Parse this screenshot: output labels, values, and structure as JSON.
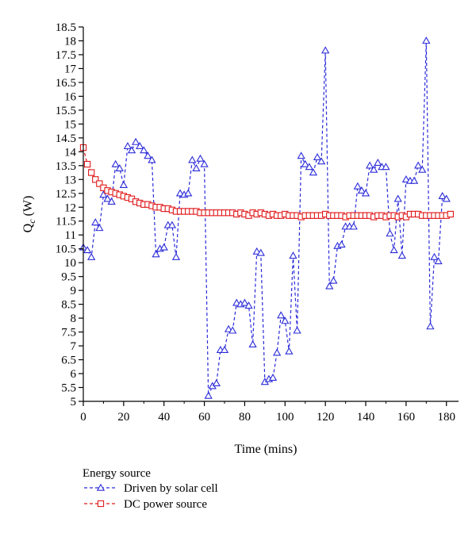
{
  "chart_data": {
    "type": "line",
    "xlabel": "Time (mins)",
    "ylabel_main": "Q",
    "ylabel_sub": "c",
    "ylabel_unit": " (W)",
    "xlim": [
      0,
      186
    ],
    "ylim": [
      5,
      18.5
    ],
    "xticks": [
      0,
      20,
      40,
      60,
      80,
      100,
      120,
      140,
      160,
      180
    ],
    "xtick_labels": [
      "0",
      "20",
      "40",
      "60",
      "80",
      "100",
      "120",
      "140",
      "160",
      "180"
    ],
    "yticks": [
      5,
      5.5,
      6,
      6.5,
      7,
      7.5,
      8,
      8.5,
      9,
      9.5,
      10,
      10.5,
      11,
      11.5,
      12,
      12.5,
      13,
      13.5,
      14,
      14.5,
      15,
      15.5,
      16,
      16.5,
      17,
      17.5,
      18,
      18.5
    ],
    "ytick_labels": [
      "5",
      "5.5",
      "6",
      "6.5",
      "7",
      "7.5",
      "8",
      "8.5",
      "9",
      "9.5",
      "10",
      "10.5",
      "11",
      "11.5",
      "12",
      "12.5",
      "13",
      "13.5",
      "14",
      "14.5",
      "15",
      "15.5",
      "16",
      "16.5",
      "17",
      "17.5",
      "18",
      "18.5"
    ],
    "legend_title": "Energy source",
    "legend_position": "bottom-left",
    "grid": false,
    "series": [
      {
        "name": "Driven by solar cell",
        "color": "#2b2bd9",
        "marker": "triangle",
        "line_style": "dashed",
        "x": [
          0,
          2,
          4,
          6,
          8,
          10,
          12,
          14,
          16,
          18,
          20,
          22,
          24,
          26,
          28,
          30,
          32,
          34,
          36,
          38,
          40,
          42,
          44,
          46,
          48,
          50,
          52,
          54,
          56,
          58,
          60,
          62,
          64,
          66,
          68,
          70,
          72,
          74,
          76,
          78,
          80,
          82,
          84,
          86,
          88,
          90,
          92,
          94,
          96,
          98,
          100,
          102,
          104,
          106,
          108,
          110,
          112,
          114,
          116,
          118,
          120,
          122,
          124,
          126,
          128,
          130,
          132,
          134,
          136,
          138,
          140,
          142,
          144,
          146,
          148,
          150,
          152,
          154,
          156,
          158,
          160,
          162,
          164,
          166,
          168,
          170,
          172,
          174,
          176,
          178,
          180
        ],
        "values": [
          10.55,
          10.45,
          10.2,
          11.45,
          11.25,
          12.45,
          12.3,
          12.2,
          13.55,
          13.4,
          12.8,
          14.2,
          14.05,
          14.35,
          14.2,
          14.05,
          13.85,
          13.7,
          10.3,
          10.5,
          10.55,
          11.35,
          11.35,
          10.2,
          12.5,
          12.45,
          12.5,
          13.7,
          13.4,
          13.75,
          13.55,
          5.2,
          5.55,
          5.65,
          6.85,
          6.85,
          7.6,
          7.55,
          8.55,
          8.5,
          8.55,
          8.45,
          7.05,
          10.4,
          10.35,
          5.7,
          5.8,
          5.85,
          6.75,
          8.1,
          7.9,
          6.8,
          10.25,
          7.55,
          13.85,
          13.55,
          13.45,
          13.25,
          13.8,
          13.65,
          17.65,
          9.15,
          9.35,
          10.6,
          10.65,
          11.3,
          11.3,
          11.3,
          12.75,
          12.6,
          12.5,
          13.5,
          13.35,
          13.6,
          13.45,
          13.45,
          11.05,
          10.45,
          12.3,
          10.25,
          13.0,
          12.95,
          12.95,
          13.5,
          13.35,
          18.0,
          7.7,
          10.2,
          10.05,
          12.4,
          12.3
        ]
      },
      {
        "name": "DC power source",
        "color": "#e0191b",
        "marker": "square",
        "line_style": "dashed",
        "x": [
          0,
          2,
          4,
          6,
          8,
          10,
          12,
          14,
          16,
          18,
          20,
          22,
          24,
          26,
          28,
          30,
          32,
          34,
          36,
          38,
          40,
          42,
          44,
          46,
          48,
          50,
          52,
          54,
          56,
          58,
          60,
          62,
          64,
          66,
          68,
          70,
          72,
          74,
          76,
          78,
          80,
          82,
          84,
          86,
          88,
          90,
          92,
          94,
          96,
          98,
          100,
          102,
          104,
          106,
          108,
          110,
          112,
          114,
          116,
          118,
          120,
          122,
          124,
          126,
          128,
          130,
          132,
          134,
          136,
          138,
          140,
          142,
          144,
          146,
          148,
          150,
          152,
          154,
          156,
          158,
          160,
          162,
          164,
          166,
          168,
          170,
          172,
          174,
          176,
          178,
          180,
          182
        ],
        "values": [
          14.15,
          13.55,
          13.25,
          13.0,
          12.85,
          12.7,
          12.6,
          12.55,
          12.5,
          12.45,
          12.4,
          12.35,
          12.3,
          12.2,
          12.15,
          12.1,
          12.1,
          12.05,
          12.0,
          12.0,
          11.95,
          11.95,
          11.9,
          11.85,
          11.85,
          11.85,
          11.85,
          11.85,
          11.85,
          11.8,
          11.8,
          11.8,
          11.8,
          11.8,
          11.8,
          11.8,
          11.8,
          11.8,
          11.75,
          11.8,
          11.75,
          11.7,
          11.8,
          11.75,
          11.8,
          11.75,
          11.7,
          11.75,
          11.7,
          11.7,
          11.75,
          11.7,
          11.7,
          11.7,
          11.65,
          11.7,
          11.7,
          11.7,
          11.7,
          11.7,
          11.75,
          11.7,
          11.7,
          11.7,
          11.7,
          11.65,
          11.7,
          11.7,
          11.7,
          11.7,
          11.7,
          11.7,
          11.65,
          11.7,
          11.7,
          11.65,
          11.7,
          11.7,
          11.65,
          11.7,
          11.65,
          11.75,
          11.75,
          11.75,
          11.7,
          11.7,
          11.7,
          11.7,
          11.7,
          11.7,
          11.7,
          11.75
        ]
      }
    ]
  }
}
